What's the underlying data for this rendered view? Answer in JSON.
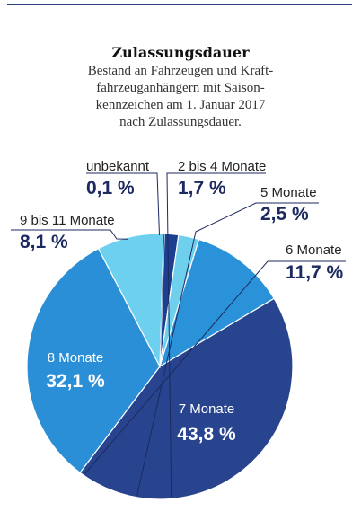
{
  "chart_data": {
    "type": "pie",
    "title": "Zulassungsdauer",
    "subtitle": "Bestand an Fahrzeugen und Kraft-\nfahrzeuganhängern mit Saison-\nkennzeichen am 1. Januar 2017\nnach Zulassungsdauer.",
    "slices": [
      {
        "label": "2 bis 4 Monate",
        "value": 1.7,
        "value_label": "1,7 %",
        "color": "#1d3f8f"
      },
      {
        "label": "5 Monate",
        "value": 2.5,
        "value_label": "2,5 %",
        "color": "#6fd0ee"
      },
      {
        "label": "6 Monate",
        "value": 11.7,
        "value_label": "11,7 %",
        "color": "#2a92d8"
      },
      {
        "label": "7 Monate",
        "value": 43.8,
        "value_label": "43,8 %",
        "color": "#28448f"
      },
      {
        "label": "8 Monate",
        "value": 32.1,
        "value_label": "32,1 %",
        "color": "#2a8fd6"
      },
      {
        "label": "9 bis 11 Monate",
        "value": 8.1,
        "value_label": "8,1 %",
        "color": "#6cd0ee"
      },
      {
        "label": "unbekannt",
        "value": 0.1,
        "value_label": "0,1 %",
        "color": "#1d3f8f"
      }
    ]
  }
}
